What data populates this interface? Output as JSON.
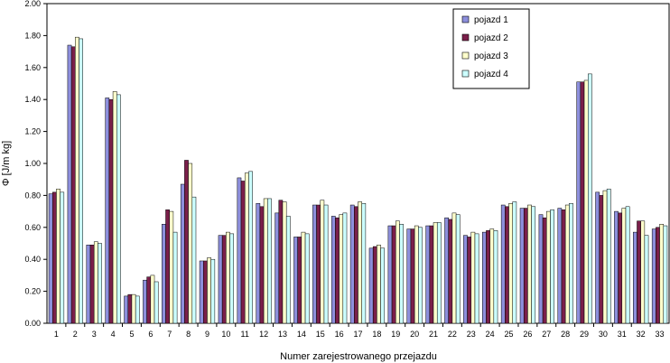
{
  "chart_data": {
    "type": "bar",
    "title": "",
    "xlabel": "Numer zarejestrowanego przejazdu",
    "ylabel": "Φ [J/m kg]",
    "ylim": [
      0,
      2
    ],
    "yticks": [
      "0.00",
      "0.20",
      "0.40",
      "0.60",
      "0.80",
      "1.00",
      "1.20",
      "1.40",
      "1.60",
      "1.80",
      "2.00"
    ],
    "categories": [
      "1",
      "2",
      "3",
      "4",
      "5",
      "6",
      "7",
      "8",
      "9",
      "10",
      "11",
      "12",
      "13",
      "14",
      "15",
      "16",
      "17",
      "18",
      "19",
      "20",
      "21",
      "22",
      "23",
      "24",
      "25",
      "26",
      "27",
      "28",
      "29",
      "30",
      "31",
      "32",
      "33"
    ],
    "grid": false,
    "legend_position": "top-right",
    "series": [
      {
        "name": "pojazd 1",
        "color": "#8d8fdc",
        "values": [
          0.81,
          1.74,
          0.49,
          1.41,
          0.17,
          0.27,
          0.62,
          0.87,
          0.39,
          0.55,
          0.91,
          0.75,
          0.69,
          0.54,
          0.74,
          0.67,
          0.74,
          0.47,
          0.61,
          0.59,
          0.61,
          0.66,
          0.55,
          0.57,
          0.74,
          0.72,
          0.68,
          0.72,
          1.51,
          0.82,
          0.7,
          0.57,
          0.59
        ]
      },
      {
        "name": "pojazd 2",
        "color": "#7a1f4a",
        "values": [
          0.82,
          1.73,
          0.49,
          1.4,
          0.18,
          0.29,
          0.71,
          1.02,
          0.39,
          0.55,
          0.89,
          0.73,
          0.77,
          0.54,
          0.74,
          0.66,
          0.73,
          0.48,
          0.61,
          0.59,
          0.61,
          0.65,
          0.54,
          0.58,
          0.73,
          0.72,
          0.66,
          0.71,
          1.51,
          0.8,
          0.69,
          0.64,
          0.6
        ]
      },
      {
        "name": "pojazd 3",
        "color": "#ffffcc",
        "values": [
          0.84,
          1.79,
          0.51,
          1.45,
          0.18,
          0.3,
          0.7,
          1.0,
          0.41,
          0.57,
          0.94,
          0.78,
          0.76,
          0.57,
          0.77,
          0.68,
          0.76,
          0.49,
          0.64,
          0.61,
          0.63,
          0.69,
          0.57,
          0.59,
          0.75,
          0.74,
          0.7,
          0.74,
          1.52,
          0.83,
          0.72,
          0.64,
          0.62
        ]
      },
      {
        "name": "pojazd 4",
        "color": "#ccffff",
        "values": [
          0.82,
          1.78,
          0.5,
          1.43,
          0.17,
          0.26,
          0.57,
          0.79,
          0.4,
          0.56,
          0.95,
          0.78,
          0.67,
          0.56,
          0.74,
          0.69,
          0.75,
          0.47,
          0.62,
          0.6,
          0.63,
          0.68,
          0.56,
          0.58,
          0.76,
          0.73,
          0.71,
          0.75,
          1.56,
          0.84,
          0.73,
          0.55,
          0.61
        ]
      }
    ]
  }
}
